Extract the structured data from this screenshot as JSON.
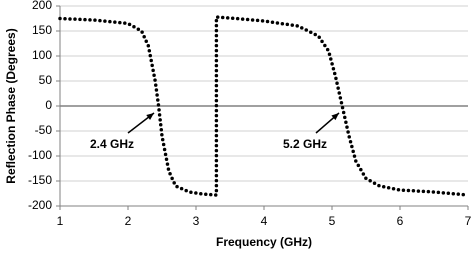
{
  "chart_data": {
    "type": "line",
    "x_label": "Frequency (GHz)",
    "y_label": "Reflection Phase (Degrees)",
    "x": [
      1,
      1.5,
      2,
      2.2,
      2.3,
      2.4,
      2.45,
      2.5,
      2.6,
      2.7,
      2.9,
      3.1,
      3.3,
      3.3,
      3.5,
      4,
      4.5,
      4.8,
      4.95,
      5.05,
      5.15,
      5.25,
      5.35,
      5.5,
      5.7,
      6,
      6.5,
      7
    ],
    "series": [
      {
        "color": "#000000",
        "values": [
          175,
          172,
          165,
          150,
          120,
          50,
          0,
          -60,
          -130,
          -160,
          -172,
          -176,
          -178,
          178,
          176,
          170,
          160,
          140,
          110,
          60,
          0,
          -60,
          -110,
          -145,
          -160,
          -168,
          -172,
          -178
        ]
      }
    ],
    "xlim": [
      1,
      7
    ],
    "xticks": [
      1,
      2,
      3,
      4,
      5,
      6,
      7
    ],
    "ylim": [
      -200,
      200
    ],
    "yticks": [
      -200,
      -150,
      -100,
      -50,
      0,
      50,
      100,
      150,
      200
    ],
    "grid": true,
    "annotations": [
      "2.4 GHz",
      "5.2 GHz"
    ]
  }
}
